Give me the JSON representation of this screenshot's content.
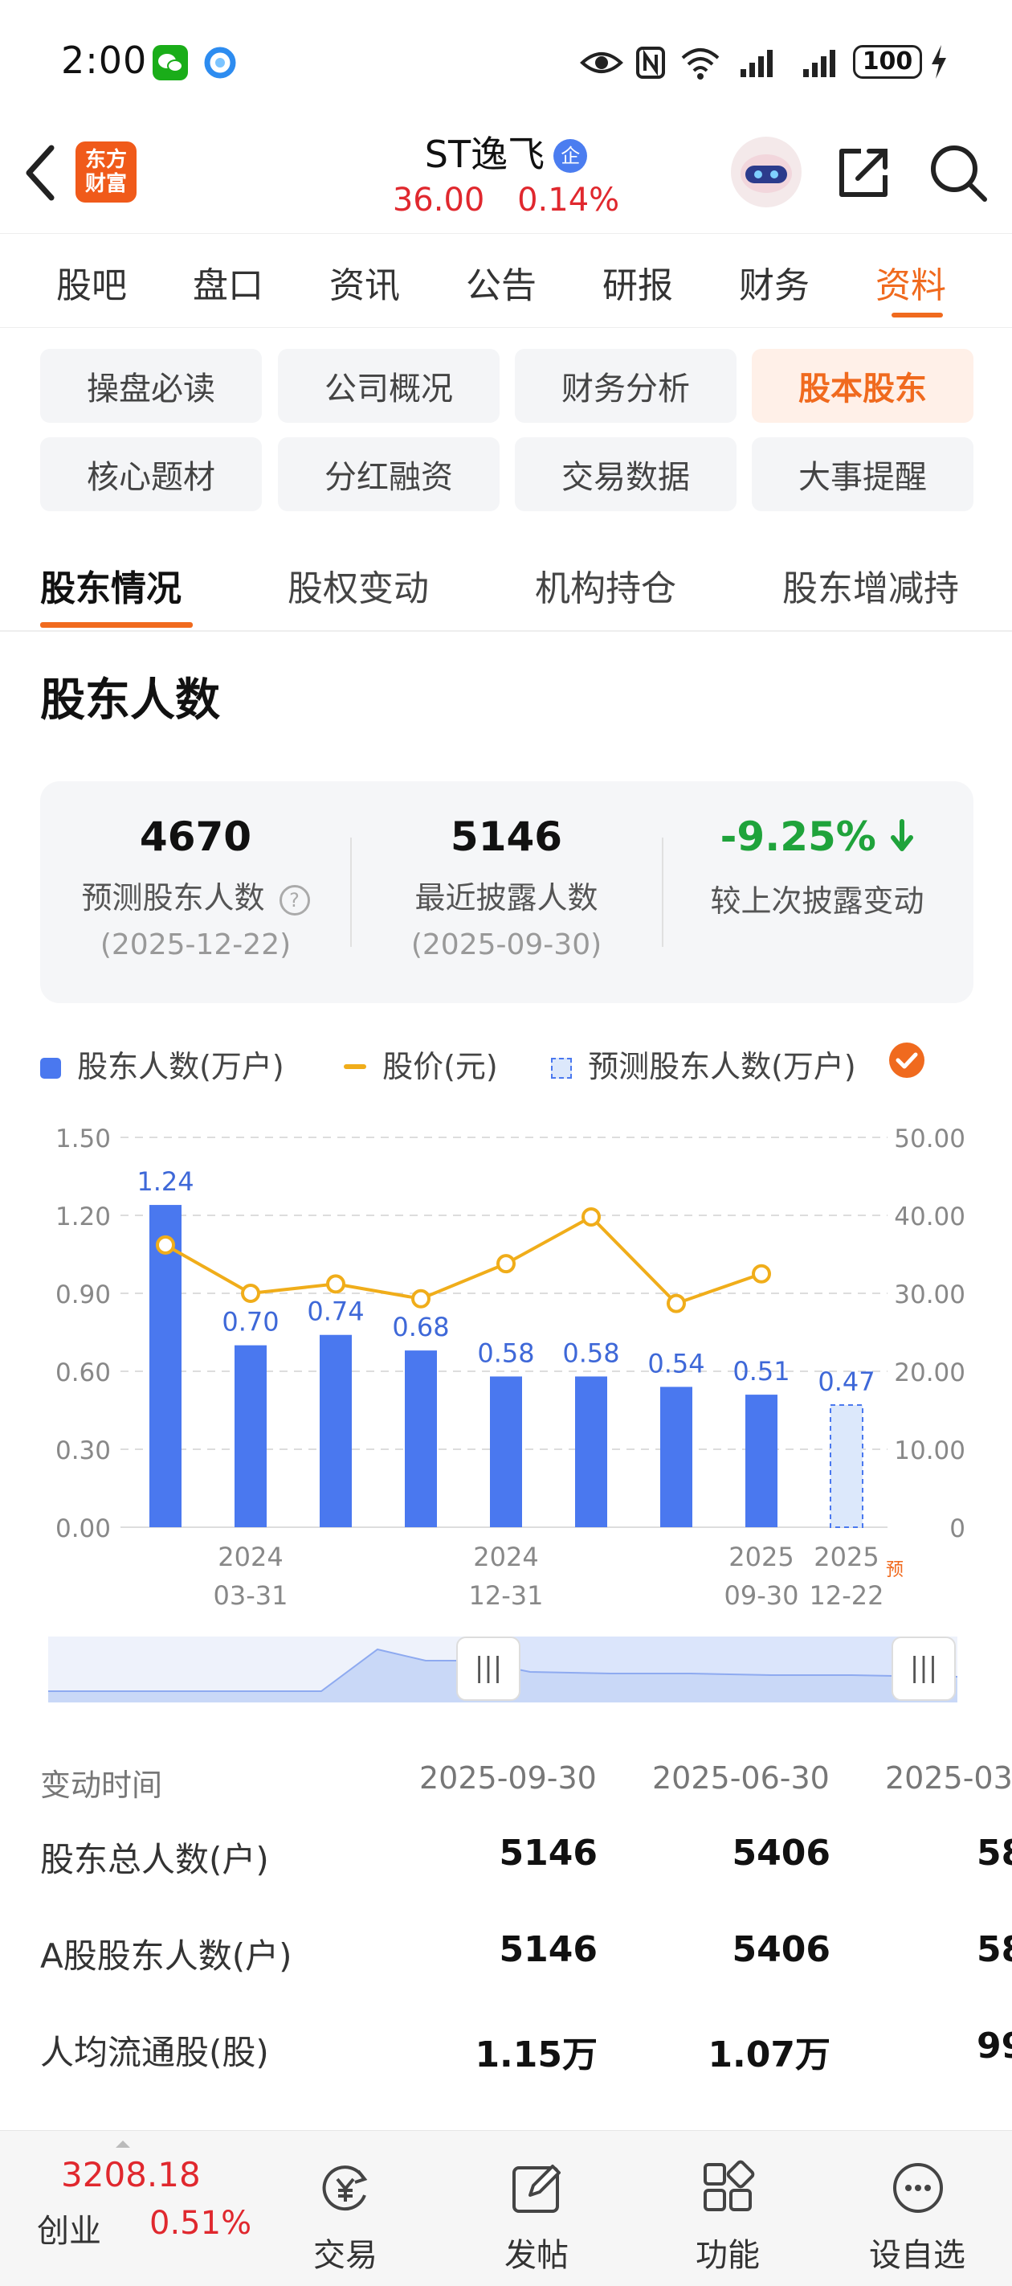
{
  "status_bar": {
    "time": "2:00",
    "battery": "100"
  },
  "header": {
    "logo_text_1": "东方",
    "logo_text_2": "财富",
    "stock_name": "ST逸飞",
    "badge": "企",
    "price": "36.00",
    "change_pct": "0.14%"
  },
  "main_tabs": [
    "股吧",
    "盘口",
    "资讯",
    "公告",
    "研报",
    "财务",
    "资料"
  ],
  "chips": [
    "操盘必读",
    "公司概况",
    "财务分析",
    "股本股东",
    "核心题材",
    "分红融资",
    "交易数据",
    "大事提醒"
  ],
  "sub_tabs": [
    "股东情况",
    "股权变动",
    "机构持仓",
    "股东增减持"
  ],
  "section_title": "股东人数",
  "stats": [
    {
      "value": "4670",
      "label": "预测股东人数",
      "date": "(2025-12-22)"
    },
    {
      "value": "5146",
      "label": "最近披露人数",
      "date": "(2025-09-30)"
    },
    {
      "value": "-9.25%",
      "label": "较上次披露变动",
      "date": ""
    }
  ],
  "legend": {
    "bars": "股东人数(万户)",
    "line": "股价(元)",
    "forecast": "预测股东人数(万户)"
  },
  "chart_data": {
    "type": "bar",
    "left_axis_ticks": [
      "1.50",
      "1.20",
      "0.90",
      "0.60",
      "0.30",
      "0.00"
    ],
    "right_axis_ticks": [
      "50.00",
      "40.00",
      "30.00",
      "20.00",
      "10.00",
      "0"
    ],
    "ylim_left": [
      0,
      1.5
    ],
    "ylim_right": [
      0,
      50
    ],
    "bar_values": [
      1.24,
      0.7,
      0.74,
      0.68,
      0.58,
      0.58,
      0.54,
      0.51,
      0.47
    ],
    "bar_labels": [
      "1.24",
      "0.70",
      "0.74",
      "0.68",
      "0.58",
      "0.58",
      "0.54",
      "0.51",
      "0.47"
    ],
    "forecast_index": 8,
    "price_values": [
      36.2,
      30.0,
      31.2,
      29.3,
      33.8,
      39.8,
      28.7,
      32.5
    ],
    "x_ticks": [
      {
        "index": 1,
        "line1": "2024",
        "line2": "03-31"
      },
      {
        "index": 4,
        "line1": "2024",
        "line2": "12-31"
      },
      {
        "index": 7,
        "line1": "2025",
        "line2": "09-30"
      },
      {
        "index": 8,
        "line1": "2025",
        "line2": "12-22"
      }
    ],
    "forecast_mark": "预",
    "colors": {
      "bar": "#4a78ef",
      "line": "#f0ad1a",
      "forecast_fill": "#dce8fb"
    }
  },
  "table": {
    "header_label": "变动时间",
    "dates": [
      "2025-09-30",
      "2025-06-30",
      "2025-03"
    ],
    "rows": [
      {
        "label": "股东总人数(户)",
        "values": [
          "5146",
          "5406",
          "58"
        ]
      },
      {
        "label": "A股股东人数(户)",
        "values": [
          "5146",
          "5406",
          "58"
        ]
      },
      {
        "label": "人均流通股(股)",
        "values": [
          "1.15万",
          "1.07万",
          "99"
        ]
      }
    ]
  },
  "bottom_bar": {
    "index_value": "3208.18",
    "index_name": "创业",
    "index_change": "0.51%",
    "items": [
      "交易",
      "发帖",
      "功能",
      "设自选"
    ]
  }
}
